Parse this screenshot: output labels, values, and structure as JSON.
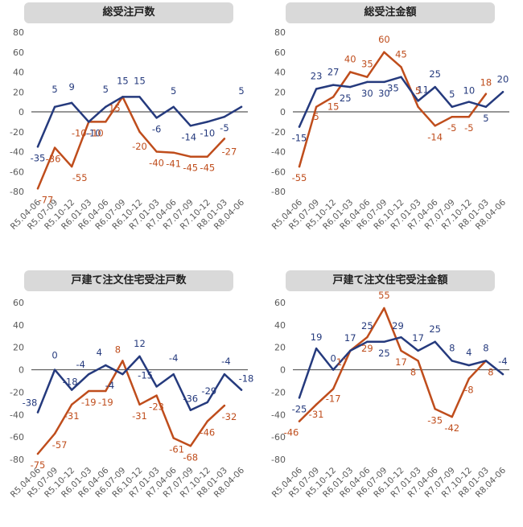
{
  "colors": {
    "series1": "#253a7d",
    "series2": "#bf4d1c",
    "zero_line": "#595959",
    "grid": "none"
  },
  "chart_data": [
    {
      "type": "line",
      "title": "総受注戸数",
      "categories": [
        "R5.04-06",
        "R5.07-09",
        "R5.10-12",
        "R6.01-03",
        "R6.04-06",
        "R6.07-09",
        "R6.10-12",
        "R7.01-03",
        "R7.04-06",
        "R7.07-09",
        "R7.10-12",
        "R8.01-03",
        "R8.04-06"
      ],
      "ylim": [
        -80,
        80
      ],
      "yticks": [
        -80,
        -60,
        -40,
        -20,
        0,
        20,
        40,
        60,
        80
      ],
      "grid": false,
      "series": [
        {
          "values": [
            -35,
            5,
            9,
            -10,
            5,
            15,
            15,
            -6,
            5,
            -14,
            -10,
            -5,
            5
          ],
          "labels": [
            "-35",
            "5",
            "9",
            "-10",
            "5",
            "15",
            "15",
            "-6",
            "5",
            "-14",
            "-10",
            "-5",
            "5"
          ]
        },
        {
          "values": [
            -77,
            -36,
            -55,
            -10,
            -10,
            15,
            -20,
            -40,
            -41,
            -45,
            -45,
            -27,
            null
          ],
          "labels": [
            "-77",
            "-36",
            "-55",
            "-10",
            "-10",
            "15",
            "-20",
            "-40",
            "-41",
            "-45",
            "-45",
            "-27",
            ""
          ]
        }
      ]
    },
    {
      "type": "line",
      "title": "総受注金額",
      "categories": [
        "R5.04-06",
        "R5.07-09",
        "R5.10-12",
        "R6.01-03",
        "R6.04-06",
        "R6.07-09",
        "R6.10-12",
        "R7.01-03",
        "R7.04-06",
        "R7.07-09",
        "R7.10-12",
        "R8.01-03",
        "R8.04-06"
      ],
      "ylim": [
        -80,
        80
      ],
      "yticks": [
        -80,
        -60,
        -40,
        -20,
        0,
        20,
        40,
        60,
        80
      ],
      "grid": false,
      "series": [
        {
          "values": [
            -15,
            23,
            27,
            25,
            30,
            30,
            35,
            11,
            25,
            5,
            10,
            5,
            20
          ],
          "labels": [
            "-15",
            "23",
            "27",
            "25",
            "30",
            "30",
            "35",
            "11",
            "25",
            "5",
            "10",
            "5",
            "20"
          ]
        },
        {
          "values": [
            -55,
            5,
            15,
            40,
            35,
            60,
            45,
            5,
            -14,
            -5,
            -5,
            18,
            null
          ],
          "labels": [
            "-55",
            "5",
            "15",
            "40",
            "35",
            "60",
            "45",
            "5",
            "-14",
            "-5",
            "-5",
            "18",
            ""
          ]
        }
      ]
    },
    {
      "type": "line",
      "title": "戸建て注文住宅受注戸数",
      "categories": [
        "R5.04-06",
        "R5.07-09",
        "R5.10-12",
        "R6.01-03",
        "R6.04-06",
        "R6.07-09",
        "R6.10-12",
        "R7.01-03",
        "R7.04-06",
        "R7.07-09",
        "R7.10-12",
        "R8.01-03",
        "R8.04-06"
      ],
      "ylim": [
        -80,
        60
      ],
      "yticks": [
        -80,
        -60,
        -40,
        -20,
        0,
        20,
        40,
        60
      ],
      "grid": false,
      "series": [
        {
          "values": [
            -38,
            0,
            -18,
            -4,
            4,
            -4,
            12,
            -15,
            -4,
            -36,
            -29,
            -4,
            -18
          ],
          "labels": [
            "-38",
            "0",
            "-18",
            "-4",
            "4",
            "-4",
            "12",
            "-15",
            "-4",
            "-36",
            "-29",
            "-4",
            "-18"
          ]
        },
        {
          "values": [
            -75,
            -57,
            -31,
            -19,
            -19,
            8,
            -31,
            -23,
            -61,
            -68,
            -46,
            -32,
            null
          ],
          "labels": [
            "-75",
            "-57",
            "-31",
            "-19",
            "-19",
            "8",
            "-31",
            "-23",
            "-61",
            "-68",
            "-46",
            "-32",
            ""
          ]
        }
      ]
    },
    {
      "type": "line",
      "title": "戸建て注文住宅受注金額",
      "categories": [
        "R5.04-06",
        "R5.07-09",
        "R5.10-12",
        "R6.01-03",
        "R6.04-06",
        "R6.07-09",
        "R6.10-12",
        "R7.01-03",
        "R7.04-06",
        "R7.07-09",
        "R7.10-12",
        "R8.01-03",
        "R8.04-06"
      ],
      "ylim": [
        -80,
        60
      ],
      "yticks": [
        -80,
        -60,
        -40,
        -20,
        0,
        20,
        40,
        60
      ],
      "grid": false,
      "series": [
        {
          "values": [
            -25,
            19,
            0,
            17,
            25,
            25,
            29,
            17,
            25,
            8,
            4,
            8,
            -4
          ],
          "labels": [
            "-25",
            "19",
            "0",
            "17",
            "25",
            "25",
            "29",
            "17",
            "25",
            "8",
            "4",
            "8",
            "-4"
          ]
        },
        {
          "values": [
            -46,
            -31,
            -17,
            17,
            29,
            55,
            17,
            8,
            -35,
            -42,
            -8,
            8,
            null
          ],
          "labels": [
            "-46",
            "-31",
            "-17",
            "17",
            "29",
            "55",
            "17",
            "8",
            "-35",
            "-42",
            "-8",
            "8",
            ""
          ]
        }
      ]
    }
  ]
}
